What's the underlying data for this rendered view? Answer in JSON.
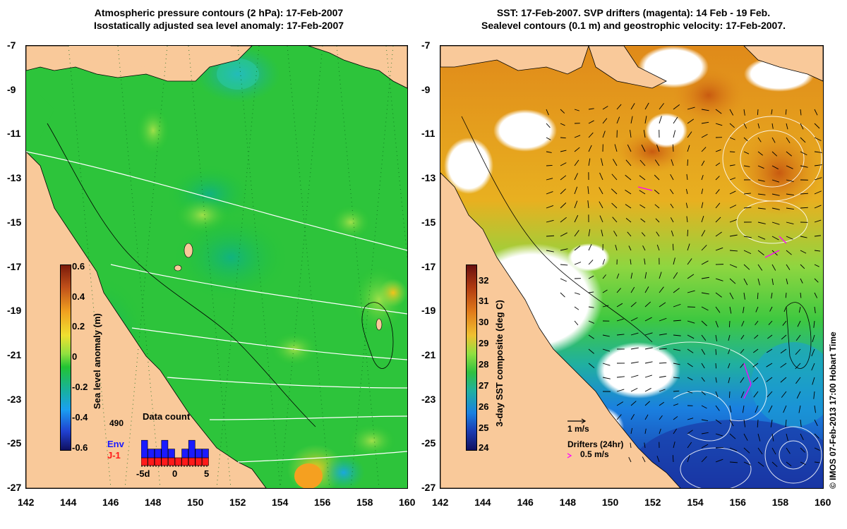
{
  "left_panel": {
    "title_line1": "Atmospheric pressure contours (2 hPa): 17-Feb-2007",
    "title_line2": "Isostatically adjusted sea level anomaly: 17-Feb-2007",
    "colorbar": {
      "label": "Sea level anomaly (m)",
      "ticks": [
        "0.6",
        "0.4",
        "0.2",
        "0",
        "-0.2",
        "-0.4",
        "-0.6"
      ]
    },
    "data_count": {
      "title": "Data count",
      "total": "490",
      "legend_env": "Env",
      "legend_j1": "J-1",
      "env_color": "#1a1aff",
      "j1_color": "#ff1a1a",
      "x_ticks": [
        "-5d",
        "0",
        "5"
      ],
      "bars_env": [
        2,
        1,
        1,
        2,
        1,
        0,
        1,
        2,
        1,
        1
      ],
      "bars_j1": [
        1,
        1,
        1,
        1,
        1,
        1,
        1,
        1,
        1,
        1
      ]
    }
  },
  "right_panel": {
    "title_line1": "SST: 17-Feb-2007. SVP drifters (magenta): 14 Feb - 19 Feb.",
    "title_line2": "Sealevel contours (0.1 m) and geostrophic velocity: 17-Feb-2007.",
    "colorbar": {
      "label": "3-day SST composite (deg C)",
      "ticks": [
        "32",
        "31",
        "30",
        "29",
        "28",
        "27",
        "26",
        "25",
        "24"
      ]
    },
    "velocity_scale": "1 m/s",
    "drifters_label": "Drifters (24hr)",
    "drifters_scale": "0.5 m/s"
  },
  "axes": {
    "x_ticks": [
      "142",
      "144",
      "146",
      "148",
      "150",
      "152",
      "154",
      "156",
      "158",
      "160"
    ],
    "y_ticks": [
      "-7",
      "-9",
      "-11",
      "-13",
      "-15",
      "-17",
      "-19",
      "-21",
      "-23",
      "-25",
      "-27"
    ]
  },
  "credit": "© IMOS 07-Feb-2013 17:00 Hobart Time",
  "colors": {
    "land": "#f9c99a",
    "sea_level_green": "#22c433",
    "sst_warm": "#e08a1a",
    "sst_cold": "#1a2a9a",
    "drifter_magenta": "#ff00ff"
  }
}
